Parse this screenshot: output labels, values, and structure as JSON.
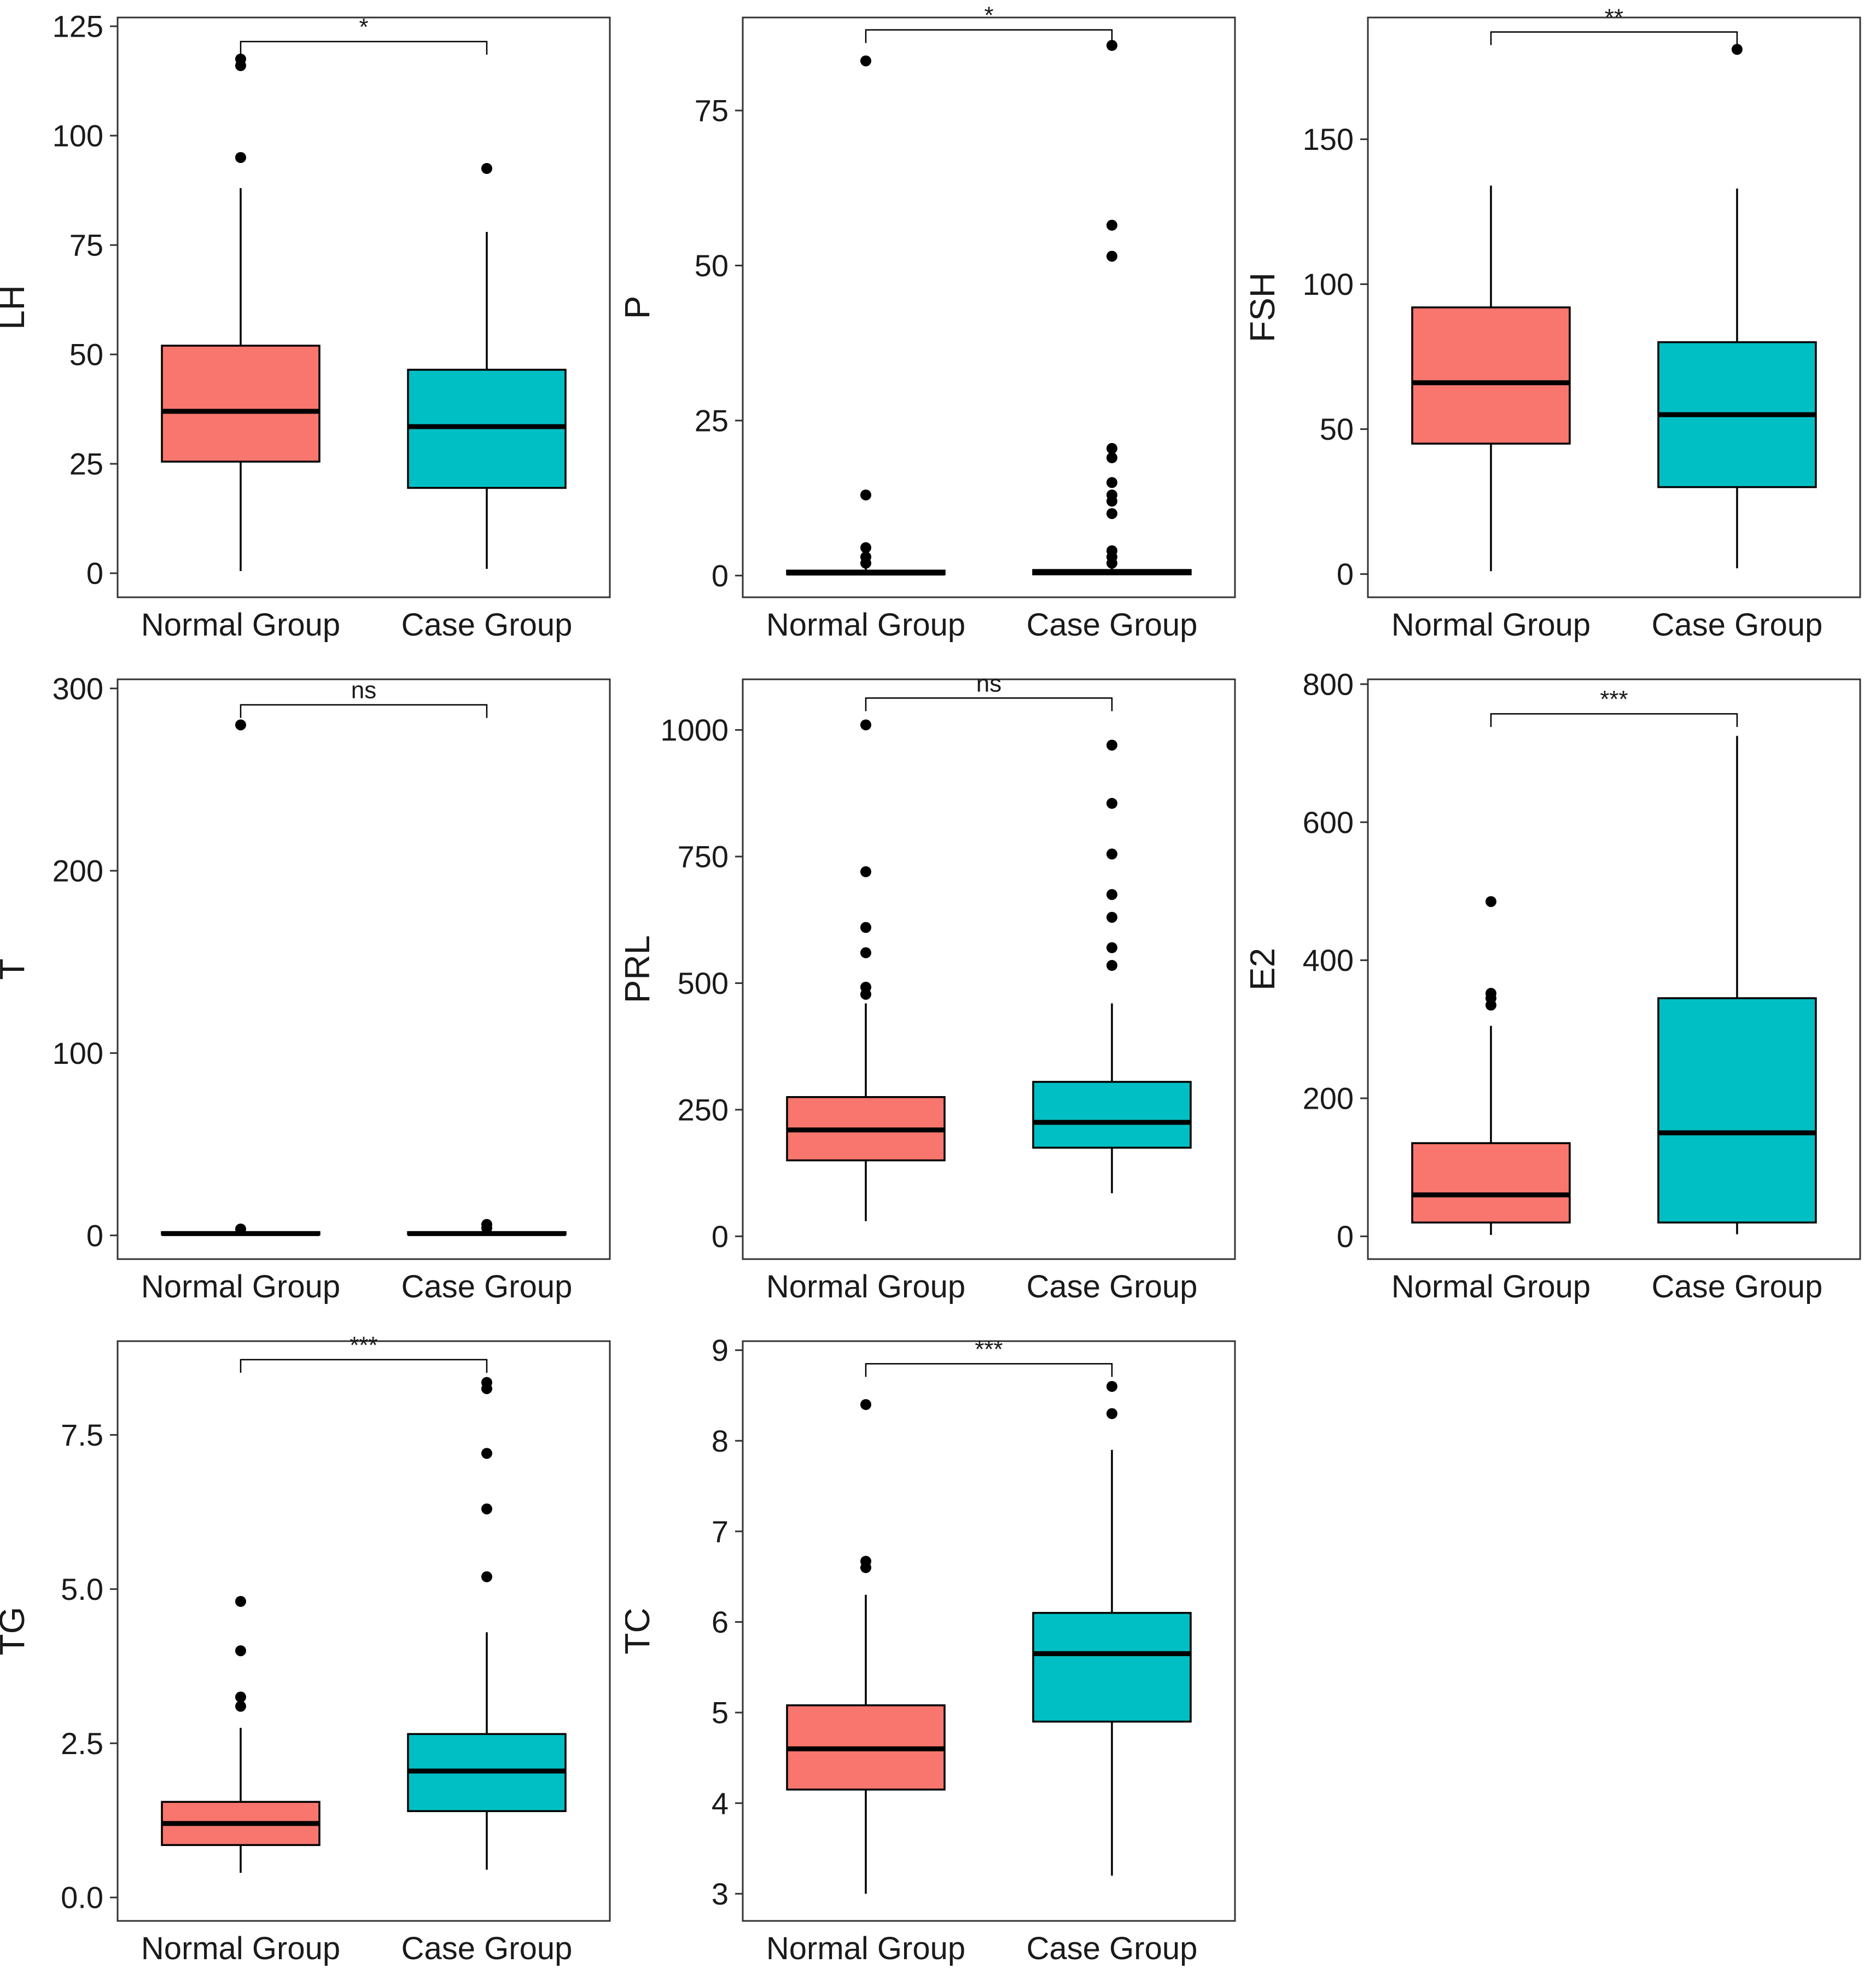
{
  "figure": {
    "background": "#FFFFFF",
    "group_colors": {
      "normal": "#F8766D",
      "case": "#00BFC4"
    },
    "categories": [
      "Normal Group",
      "Case Group"
    ],
    "panel_border_color": "#333333",
    "box_stroke_color": "#000000"
  },
  "chart_data": [
    {
      "type": "box",
      "ylabel": "LH",
      "ylim": [
        -5.5,
        127
      ],
      "yticks": [
        0,
        25,
        50,
        75,
        100,
        125
      ],
      "ytick_labels": [
        "0",
        "25",
        "50",
        "75",
        "100",
        "125"
      ],
      "significance": "*",
      "sig_y": 121.5,
      "grid": false,
      "legend": "none",
      "groups": [
        {
          "name": "Normal Group",
          "color": "#F8766D",
          "whislo": 0.5,
          "q1": 25.5,
          "med": 37,
          "q3": 52,
          "whishi": 88,
          "outliers": [
            95,
            116,
            117.5
          ]
        },
        {
          "name": "Case Group",
          "color": "#00BFC4",
          "whislo": 1,
          "q1": 19.5,
          "med": 33.5,
          "q3": 46.5,
          "whishi": 78,
          "outliers": [
            92.5
          ]
        }
      ]
    },
    {
      "type": "box",
      "ylabel": "P",
      "ylim": [
        -3.5,
        90
      ],
      "yticks": [
        0,
        25,
        50,
        75
      ],
      "ytick_labels": [
        "0",
        "25",
        "50",
        "75"
      ],
      "significance": "*",
      "sig_y": 88,
      "grid": false,
      "legend": "none",
      "groups": [
        {
          "name": "Normal Group",
          "color": "#F8766D",
          "whislo": 0.1,
          "q1": 0.2,
          "med": 0.4,
          "q3": 0.8,
          "whishi": 1.2,
          "outliers": [
            2,
            3,
            4.5,
            13,
            83
          ]
        },
        {
          "name": "Case Group",
          "color": "#00BFC4",
          "whislo": 0.1,
          "q1": 0.2,
          "med": 0.5,
          "q3": 0.9,
          "whishi": 1.3,
          "outliers": [
            2,
            3,
            4,
            10,
            12,
            13,
            15,
            19,
            20.5,
            51.5,
            56.5,
            85.5
          ]
        }
      ]
    },
    {
      "type": "box",
      "ylabel": "FSH",
      "ylim": [
        -8,
        192
      ],
      "yticks": [
        0,
        50,
        100,
        150
      ],
      "ytick_labels": [
        "0",
        "50",
        "100",
        "150"
      ],
      "significance": "**",
      "sig_y": 187,
      "grid": false,
      "legend": "none",
      "groups": [
        {
          "name": "Normal Group",
          "color": "#F8766D",
          "whislo": 1,
          "q1": 45,
          "med": 66,
          "q3": 92,
          "whishi": 134,
          "outliers": []
        },
        {
          "name": "Case Group",
          "color": "#00BFC4",
          "whislo": 2,
          "q1": 30,
          "med": 55,
          "q3": 80,
          "whishi": 133,
          "outliers": [
            181
          ]
        }
      ]
    },
    {
      "type": "box",
      "ylabel": "T",
      "ylim": [
        -13,
        305
      ],
      "yticks": [
        0,
        100,
        200,
        300
      ],
      "ytick_labels": [
        "0",
        "100",
        "200",
        "300"
      ],
      "significance": "ns",
      "sig_y": 291,
      "grid": false,
      "legend": "none",
      "groups": [
        {
          "name": "Normal Group",
          "color": "#F8766D",
          "whislo": 0.2,
          "q1": 0.5,
          "med": 1,
          "q3": 1.8,
          "whishi": 2.5,
          "outliers": [
            3.5,
            280
          ]
        },
        {
          "name": "Case Group",
          "color": "#00BFC4",
          "whislo": 0.2,
          "q1": 0.5,
          "med": 1,
          "q3": 1.8,
          "whishi": 2.5,
          "outliers": [
            4,
            6
          ]
        }
      ]
    },
    {
      "type": "box",
      "ylabel": "PRL",
      "ylim": [
        -45,
        1100
      ],
      "yticks": [
        0,
        250,
        500,
        750,
        1000
      ],
      "ytick_labels": [
        "0",
        "250",
        "500",
        "750",
        "1000"
      ],
      "significance": "ns",
      "sig_y": 1063,
      "grid": false,
      "legend": "none",
      "groups": [
        {
          "name": "Normal Group",
          "color": "#F8766D",
          "whislo": 30,
          "q1": 150,
          "med": 210,
          "q3": 275,
          "whishi": 460,
          "outliers": [
            478,
            492,
            560,
            610,
            720,
            1010
          ]
        },
        {
          "name": "Case Group",
          "color": "#00BFC4",
          "whislo": 85,
          "q1": 175,
          "med": 225,
          "q3": 305,
          "whishi": 460,
          "outliers": [
            535,
            570,
            630,
            675,
            755,
            855,
            970
          ]
        }
      ]
    },
    {
      "type": "box",
      "ylabel": "E2",
      "ylim": [
        -33,
        807
      ],
      "yticks": [
        0,
        200,
        400,
        600,
        800
      ],
      "ytick_labels": [
        "0",
        "200",
        "400",
        "600",
        "800"
      ],
      "significance": "***",
      "sig_y": 757,
      "grid": false,
      "legend": "none",
      "groups": [
        {
          "name": "Normal Group",
          "color": "#F8766D",
          "whislo": 2,
          "q1": 20,
          "med": 60,
          "q3": 135,
          "whishi": 305,
          "outliers": [
            335,
            345,
            352,
            485
          ]
        },
        {
          "name": "Case Group",
          "color": "#00BFC4",
          "whislo": 3,
          "q1": 20,
          "med": 150,
          "q3": 345,
          "whishi": 725,
          "outliers": []
        }
      ]
    },
    {
      "type": "box",
      "ylabel": "TG",
      "ylim": [
        -0.38,
        9.02
      ],
      "yticks": [
        0.0,
        2.5,
        5.0,
        7.5
      ],
      "ytick_labels": [
        "0.0",
        "2.5",
        "5.0",
        "7.5"
      ],
      "significance": "***",
      "sig_y": 8.72,
      "grid": false,
      "legend": "none",
      "groups": [
        {
          "name": "Normal Group",
          "color": "#F8766D",
          "whislo": 0.4,
          "q1": 0.85,
          "med": 1.2,
          "q3": 1.55,
          "whishi": 2.75,
          "outliers": [
            3.1,
            3.25,
            4.0,
            4.8
          ]
        },
        {
          "name": "Case Group",
          "color": "#00BFC4",
          "whislo": 0.45,
          "q1": 1.4,
          "med": 2.05,
          "q3": 2.65,
          "whishi": 4.3,
          "outliers": [
            5.2,
            6.3,
            7.2,
            8.25,
            8.35
          ]
        }
      ]
    },
    {
      "type": "box",
      "ylabel": "TC",
      "ylim": [
        2.7,
        9.1
      ],
      "yticks": [
        3,
        4,
        5,
        6,
        7,
        8,
        9
      ],
      "ytick_labels": [
        "3",
        "4",
        "5",
        "6",
        "7",
        "8",
        "9"
      ],
      "significance": "***",
      "sig_y": 8.85,
      "grid": false,
      "legend": "none",
      "groups": [
        {
          "name": "Normal Group",
          "color": "#F8766D",
          "whislo": 3.0,
          "q1": 4.15,
          "med": 4.6,
          "q3": 5.08,
          "whishi": 6.3,
          "outliers": [
            6.6,
            6.67,
            8.4
          ]
        },
        {
          "name": "Case Group",
          "color": "#00BFC4",
          "whislo": 3.2,
          "q1": 4.9,
          "med": 5.65,
          "q3": 6.1,
          "whishi": 7.9,
          "outliers": [
            8.3,
            8.6
          ]
        }
      ]
    }
  ]
}
